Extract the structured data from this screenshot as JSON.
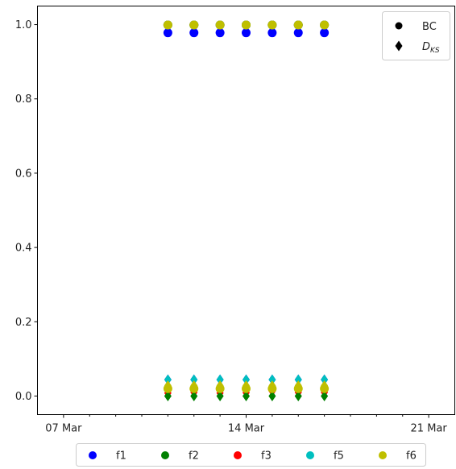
{
  "chart_data": {
    "type": "scatter",
    "title": "",
    "xlabel": "",
    "ylabel": "",
    "x_axis": {
      "type": "date",
      "range": [
        "2020-03-06",
        "2020-03-22"
      ],
      "tick_labels": [
        {
          "date": "2020-03-07",
          "label": "07 Mar"
        },
        {
          "date": "2020-03-14",
          "label": "14 Mar"
        },
        {
          "date": "2020-03-21",
          "label": "21 Mar"
        }
      ],
      "minor_tick_dates": [
        "2020-03-08",
        "2020-03-09",
        "2020-03-10",
        "2020-03-11",
        "2020-03-12",
        "2020-03-13",
        "2020-03-15",
        "2020-03-16",
        "2020-03-17",
        "2020-03-18",
        "2020-03-19",
        "2020-03-20"
      ]
    },
    "ylim": [
      -0.05,
      1.05
    ],
    "y_ticks": [
      {
        "value": 0.0,
        "label": "0.0"
      },
      {
        "value": 0.2,
        "label": "0.2"
      },
      {
        "value": 0.4,
        "label": "0.4"
      },
      {
        "value": 0.6,
        "label": "0.6"
      },
      {
        "value": 0.8,
        "label": "0.8"
      },
      {
        "value": 1.0,
        "label": "1.0"
      }
    ],
    "grid": false,
    "x": [
      "2020-03-11",
      "2020-03-12",
      "2020-03-13",
      "2020-03-14",
      "2020-03-15",
      "2020-03-16",
      "2020-03-17"
    ],
    "marker_legend": {
      "placement": "top-right",
      "entries": [
        {
          "label": "BC",
          "marker": "circle"
        },
        {
          "label_main": "D",
          "label_sub": "KS",
          "marker": "diamond"
        }
      ]
    },
    "color_legend": {
      "placement": "bottom-center",
      "entries": [
        {
          "label": "f1",
          "color": "#0000ff"
        },
        {
          "label": "f2",
          "color": "#008000"
        },
        {
          "label": "f3",
          "color": "#ff0000"
        },
        {
          "label": "f5",
          "color": "#00bfbf"
        },
        {
          "label": "f6",
          "color": "#bfbf00"
        }
      ]
    },
    "series": [
      {
        "name": "f1",
        "color": "#0000ff",
        "marker": "circle",
        "values": [
          0.978,
          0.978,
          0.978,
          0.978,
          0.978,
          0.978,
          0.978
        ]
      },
      {
        "name": "f2",
        "color": "#008000",
        "marker": "circle",
        "values": [
          0.999,
          0.999,
          0.999,
          0.999,
          0.999,
          0.999,
          0.999
        ]
      },
      {
        "name": "f3",
        "color": "#ff0000",
        "marker": "circle",
        "values": [
          0.999,
          0.999,
          0.999,
          0.999,
          0.999,
          0.999,
          0.999
        ]
      },
      {
        "name": "f5",
        "color": "#00bfbf",
        "marker": "circle",
        "values": [
          0.999,
          0.999,
          0.999,
          0.999,
          0.999,
          0.999,
          0.999
        ]
      },
      {
        "name": "f6",
        "color": "#bfbf00",
        "marker": "circle",
        "values": [
          0.999,
          0.999,
          0.999,
          0.999,
          0.999,
          0.999,
          0.999
        ]
      },
      {
        "name": "f1",
        "color": "#0000ff",
        "marker": "diamond",
        "values": [
          0.044,
          0.044,
          0.044,
          0.044,
          0.044,
          0.044,
          0.044
        ]
      },
      {
        "name": "f5",
        "color": "#00bfbf",
        "marker": "diamond",
        "values": [
          0.044,
          0.044,
          0.044,
          0.044,
          0.044,
          0.044,
          0.044
        ]
      },
      {
        "name": "f6",
        "color": "#bfbf00",
        "marker": "diamond",
        "values": [
          0.028,
          0.028,
          0.028,
          0.028,
          0.028,
          0.028,
          0.028
        ]
      },
      {
        "name": "f3",
        "color": "#ff0000",
        "marker": "diamond",
        "values": [
          0.008,
          0.01,
          0.008,
          0.009,
          0.013,
          0.01,
          0.01
        ]
      },
      {
        "name": "f2",
        "color": "#008000",
        "marker": "diamond",
        "values": [
          0.0,
          0.0,
          0.0,
          0.0,
          0.0,
          0.0,
          0.0
        ]
      },
      {
        "name": "f6",
        "color": "#bfbf00",
        "marker": "circle",
        "values": [
          0.02,
          0.02,
          0.02,
          0.02,
          0.02,
          0.02,
          0.02
        ]
      }
    ]
  }
}
